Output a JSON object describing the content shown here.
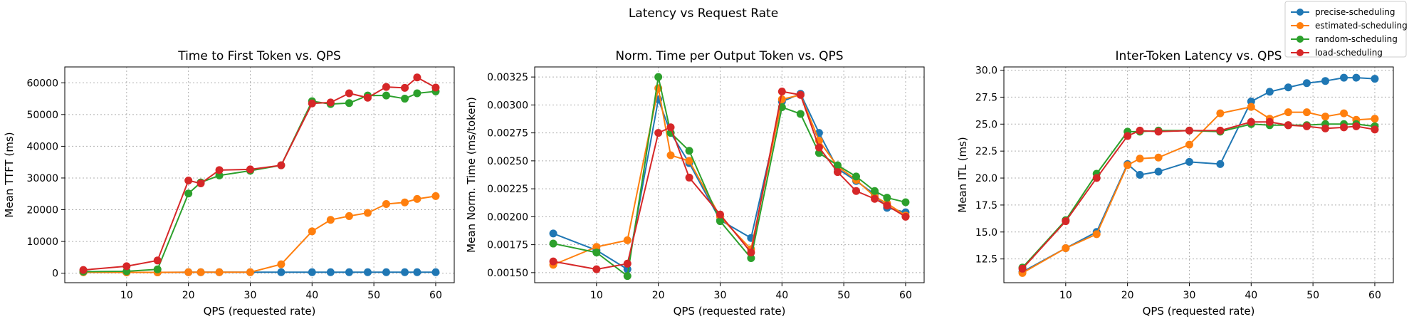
{
  "figure": {
    "suptitle": "Latency vs Request Rate"
  },
  "legend": {
    "placement": "top-right",
    "entries": [
      {
        "name": "precise-scheduling",
        "color": "#1f77b4"
      },
      {
        "name": "estimated-scheduling",
        "color": "#ff7f0e"
      },
      {
        "name": "random-scheduling",
        "color": "#2ca02c"
      },
      {
        "name": "load-scheduling",
        "color": "#d62728"
      }
    ]
  },
  "chart_data": [
    {
      "type": "line",
      "title": "Time to First Token vs. QPS",
      "xlabel": "QPS (requested rate)",
      "ylabel": "Mean TTFT (ms)",
      "xlim": [
        0,
        63
      ],
      "ylim": [
        -3000,
        65000
      ],
      "xticks": [
        10,
        20,
        30,
        40,
        50,
        60
      ],
      "xtick_labels": [
        "10",
        "20",
        "30",
        "40",
        "50",
        "60"
      ],
      "yticks": [
        0,
        10000,
        20000,
        30000,
        40000,
        50000,
        60000
      ],
      "ytick_labels": [
        "0",
        "10000",
        "20000",
        "30000",
        "40000",
        "50000",
        "60000"
      ],
      "grid": true,
      "series": [
        {
          "name": "precise-scheduling",
          "color": "#1f77b4",
          "x": [
            3,
            10,
            15,
            20,
            22,
            25,
            30,
            35,
            40,
            43,
            46,
            49,
            52,
            55,
            57,
            60
          ],
          "y": [
            300,
            250,
            250,
            300,
            300,
            300,
            300,
            300,
            300,
            300,
            300,
            300,
            300,
            300,
            300,
            300
          ]
        },
        {
          "name": "estimated-scheduling",
          "color": "#ff7f0e",
          "x": [
            3,
            10,
            15,
            20,
            22,
            25,
            30,
            35,
            40,
            43,
            46,
            49,
            52,
            55,
            57,
            60
          ],
          "y": [
            300,
            250,
            250,
            300,
            300,
            300,
            300,
            2800,
            13200,
            16800,
            18000,
            19000,
            21800,
            22300,
            23400,
            24300
          ]
        },
        {
          "name": "random-scheduling",
          "color": "#2ca02c",
          "x": [
            3,
            10,
            15,
            20,
            22,
            25,
            30,
            35,
            40,
            43,
            46,
            49,
            52,
            55,
            57,
            60
          ],
          "y": [
            500,
            600,
            1200,
            25100,
            28600,
            30800,
            32300,
            34000,
            54200,
            53300,
            53600,
            56000,
            56000,
            55000,
            56700,
            57300
          ]
        },
        {
          "name": "load-scheduling",
          "color": "#d62728",
          "x": [
            3,
            10,
            15,
            20,
            22,
            25,
            30,
            35,
            40,
            43,
            46,
            49,
            52,
            55,
            57,
            60
          ],
          "y": [
            1000,
            2200,
            4000,
            29200,
            28300,
            32500,
            32700,
            34000,
            53500,
            53800,
            56700,
            55300,
            58700,
            58400,
            61700,
            58500
          ]
        }
      ]
    },
    {
      "type": "line",
      "title": "Norm. Time per Output Token vs. QPS",
      "xlabel": "QPS (requested rate)",
      "ylabel": "Mean Norm. Time (ms/token)",
      "xlim": [
        0,
        63
      ],
      "ylim": [
        0.00141,
        0.00334
      ],
      "xticks": [
        10,
        20,
        30,
        40,
        50,
        60
      ],
      "xtick_labels": [
        "10",
        "20",
        "30",
        "40",
        "50",
        "60"
      ],
      "yticks": [
        0.0015,
        0.00175,
        0.002,
        0.00225,
        0.0025,
        0.00275,
        0.003,
        0.00325
      ],
      "ytick_labels": [
        "0.00150",
        "0.00175",
        "0.00200",
        "0.00225",
        "0.00250",
        "0.00275",
        "0.00300",
        "0.00325"
      ],
      "grid": true,
      "series": [
        {
          "name": "precise-scheduling",
          "color": "#1f77b4",
          "x": [
            3,
            10,
            15,
            20,
            22,
            25,
            30,
            35,
            40,
            43,
            46,
            49,
            52,
            55,
            57,
            60
          ],
          "y": [
            0.00185,
            0.0017,
            0.00153,
            0.00305,
            0.00275,
            0.00248,
            0.00197,
            0.00181,
            0.00303,
            0.0031,
            0.00275,
            0.00243,
            0.00232,
            0.0022,
            0.00208,
            0.00204
          ]
        },
        {
          "name": "estimated-scheduling",
          "color": "#ff7f0e",
          "x": [
            3,
            10,
            15,
            20,
            22,
            25,
            30,
            35,
            40,
            43,
            46,
            49,
            52,
            55,
            57,
            60
          ],
          "y": [
            0.00157,
            0.00173,
            0.00179,
            0.00315,
            0.00255,
            0.0025,
            0.002,
            0.00171,
            0.00305,
            0.00309,
            0.00268,
            0.00245,
            0.00233,
            0.00218,
            0.00212,
            0.00201
          ]
        },
        {
          "name": "random-scheduling",
          "color": "#2ca02c",
          "x": [
            3,
            10,
            15,
            20,
            22,
            25,
            30,
            35,
            40,
            43,
            46,
            49,
            52,
            55,
            57,
            60
          ],
          "y": [
            0.00176,
            0.00168,
            0.00147,
            0.00325,
            0.00275,
            0.00259,
            0.00196,
            0.00163,
            0.00298,
            0.00292,
            0.00257,
            0.00246,
            0.00236,
            0.00223,
            0.00217,
            0.00213
          ]
        },
        {
          "name": "load-scheduling",
          "color": "#d62728",
          "x": [
            3,
            10,
            15,
            20,
            22,
            25,
            30,
            35,
            40,
            43,
            46,
            49,
            52,
            55,
            57,
            60
          ],
          "y": [
            0.0016,
            0.00153,
            0.00158,
            0.00275,
            0.0028,
            0.00235,
            0.00202,
            0.00168,
            0.00312,
            0.00309,
            0.00262,
            0.0024,
            0.00223,
            0.00216,
            0.0021,
            0.002
          ]
        }
      ]
    },
    {
      "type": "line",
      "title": "Inter-Token Latency vs. QPS",
      "xlabel": "QPS (requested rate)",
      "ylabel": "Mean ITL (ms)",
      "xlim": [
        0,
        63
      ],
      "ylim": [
        10.3,
        30.3
      ],
      "xticks": [
        10,
        20,
        30,
        40,
        50,
        60
      ],
      "xtick_labels": [
        "10",
        "20",
        "30",
        "40",
        "50",
        "60"
      ],
      "yticks": [
        12.5,
        15,
        17.5,
        20,
        22.5,
        25,
        27.5,
        30
      ],
      "ytick_labels": [
        "12.5",
        "15.0",
        "17.5",
        "20.0",
        "22.5",
        "25.0",
        "27.5",
        "30.0"
      ],
      "grid": true,
      "series": [
        {
          "name": "precise-scheduling",
          "color": "#1f77b4",
          "x": [
            3,
            10,
            15,
            20,
            22,
            25,
            30,
            35,
            40,
            43,
            46,
            49,
            52,
            55,
            57,
            60
          ],
          "y": [
            11.3,
            13.5,
            15.0,
            21.3,
            20.3,
            20.6,
            21.5,
            21.3,
            27.1,
            28.0,
            28.4,
            28.8,
            29.0,
            29.3,
            29.3,
            29.2
          ]
        },
        {
          "name": "estimated-scheduling",
          "color": "#ff7f0e",
          "x": [
            3,
            10,
            15,
            20,
            22,
            25,
            30,
            35,
            40,
            43,
            46,
            49,
            52,
            55,
            57,
            60
          ],
          "y": [
            11.2,
            13.5,
            14.8,
            21.2,
            21.8,
            21.9,
            23.1,
            26.0,
            26.6,
            25.5,
            26.1,
            26.1,
            25.7,
            26.0,
            25.4,
            25.5
          ]
        },
        {
          "name": "random-scheduling",
          "color": "#2ca02c",
          "x": [
            3,
            10,
            15,
            20,
            22,
            25,
            30,
            35,
            40,
            43,
            46,
            49,
            52,
            55,
            57,
            60
          ],
          "y": [
            11.7,
            16.1,
            20.4,
            24.3,
            24.3,
            24.4,
            24.4,
            24.3,
            25.0,
            24.9,
            24.9,
            24.9,
            25.0,
            25.0,
            25.0,
            24.8
          ]
        },
        {
          "name": "load-scheduling",
          "color": "#d62728",
          "x": [
            3,
            10,
            15,
            20,
            22,
            25,
            30,
            35,
            40,
            43,
            46,
            49,
            52,
            55,
            57,
            60
          ],
          "y": [
            11.6,
            16.0,
            20.0,
            23.9,
            24.4,
            24.3,
            24.4,
            24.4,
            25.2,
            25.2,
            24.9,
            24.8,
            24.6,
            24.7,
            24.8,
            24.5
          ]
        }
      ]
    }
  ]
}
